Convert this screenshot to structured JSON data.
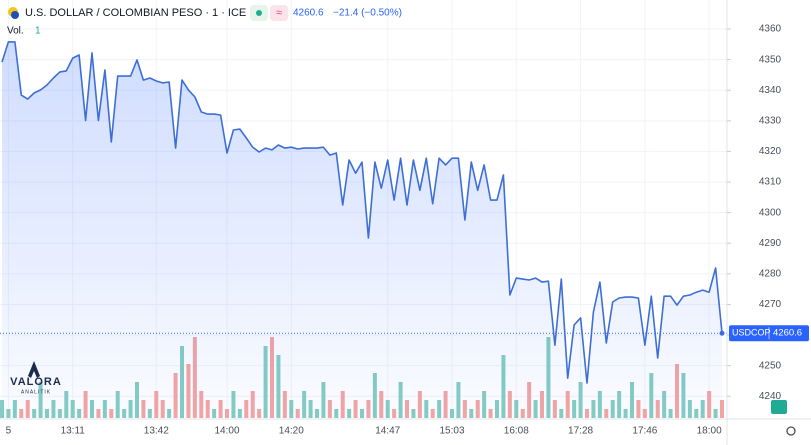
{
  "chart_data": {
    "type": "area",
    "title": "U.S. DOLLAR / COLOMBIAN PESO · 1 · ICE",
    "change": "−21.4 (−0.50%)",
    "volume_label": "Vol.",
    "volume_value": "1",
    "series": [
      {
        "name": "USDCOP",
        "color": "#3d6fd6",
        "values": [
          4349.2,
          4355.8,
          4355.8,
          4338.4,
          4337.1,
          4339.1,
          4340.1,
          4341.7,
          4344,
          4346,
          4346.3,
          4350.5,
          4351.5,
          4330.1,
          4352.2,
          4330.1,
          4346.6,
          4323.1,
          4344.6,
          4344.6,
          4344.6,
          4349.9,
          4343.3,
          4344,
          4343,
          4342.4,
          4342.7,
          4321.1,
          4343.3,
          4340.1,
          4337.8,
          4332.9,
          4332.2,
          4332.2,
          4331.9,
          4319.5,
          4327,
          4327.3,
          4324.4,
          4321.4,
          4319.8,
          4321.1,
          4320.5,
          4322.1,
          4321.1,
          4321.4,
          4320.8,
          4321.1,
          4321.1,
          4321.1,
          4321.4,
          4318.8,
          4319.5,
          4302.5,
          4317.2,
          4312.9,
          4316.5,
          4291.7,
          4316.5,
          4308,
          4317.2,
          4304.1,
          4317.8,
          4302.5,
          4317.2,
          4307.3,
          4317.8,
          4302.9,
          4317.8,
          4315.6,
          4317.8,
          4317.8,
          4297.6,
          4316.5,
          4307.3,
          4315.6,
          4304.1,
          4304.1,
          4312.3,
          4273.1,
          4278.6,
          4278.3,
          4278,
          4278.6,
          4277.3,
          4277.6,
          4256.7,
          4278.3,
          4245.9,
          4263.3,
          4265.6,
          4244.3,
          4267.5,
          4277.3,
          4257.4,
          4270.8,
          4272.1,
          4272.4,
          4272.4,
          4272.1,
          4256.7,
          4272.7,
          4252.5,
          4272.7,
          4272.7,
          4269.8,
          4272.7,
          4273.1,
          4274,
          4274.7,
          4274,
          4281.9,
          4260.6
        ]
      }
    ],
    "volume": {
      "up_color": "#86cdc3",
      "down_color": "#f4a5a3",
      "ylim": [
        0,
        10
      ],
      "values": [
        2,
        1,
        2,
        1,
        2,
        1,
        4,
        1,
        2,
        1,
        3,
        2,
        1,
        3,
        2,
        1,
        2,
        1,
        3,
        1,
        2,
        4,
        2,
        1,
        3,
        2,
        1,
        5,
        8,
        6,
        9,
        3,
        2,
        1,
        2,
        1,
        3,
        1,
        2,
        3,
        1,
        8,
        9,
        7,
        3,
        2,
        1,
        3,
        2,
        1,
        4,
        2,
        1,
        3,
        1,
        2,
        1,
        2,
        5,
        3,
        2,
        1,
        4,
        2,
        1,
        3,
        2,
        1,
        2,
        3,
        1,
        4,
        2,
        1,
        2,
        3,
        1,
        2,
        7,
        3,
        2,
        1,
        4,
        2,
        3,
        9,
        2,
        1,
        3,
        2,
        4,
        1,
        2,
        3,
        1,
        2,
        3,
        1,
        4,
        2,
        1,
        5,
        2,
        3,
        1,
        6,
        5,
        2,
        1,
        2,
        3,
        1,
        2
      ]
    },
    "xlim": [
      0,
      112
    ],
    "xticks": [
      {
        "value": 1,
        "label": "5"
      },
      {
        "value": 11,
        "label": "13:11"
      },
      {
        "value": 24,
        "label": "13:42"
      },
      {
        "value": 35,
        "label": "14:00"
      },
      {
        "value": 45,
        "label": "14:20"
      },
      {
        "value": 60,
        "label": "14:47"
      },
      {
        "value": 70,
        "label": "15:03"
      },
      {
        "value": 80,
        "label": "16:08"
      },
      {
        "value": 90,
        "label": "17:28"
      },
      {
        "value": 100,
        "label": "17:46"
      },
      {
        "value": 110,
        "label": "18:00"
      }
    ],
    "ylim": [
      4232.9,
      4363.6
    ],
    "yticks": [
      4240,
      4250,
      4260,
      4270,
      4280,
      4290,
      4300,
      4310,
      4320,
      4330,
      4340,
      4350,
      4360
    ],
    "grid": true,
    "logo": {
      "name": "VALORA",
      "sub": "ANALITIK"
    }
  }
}
